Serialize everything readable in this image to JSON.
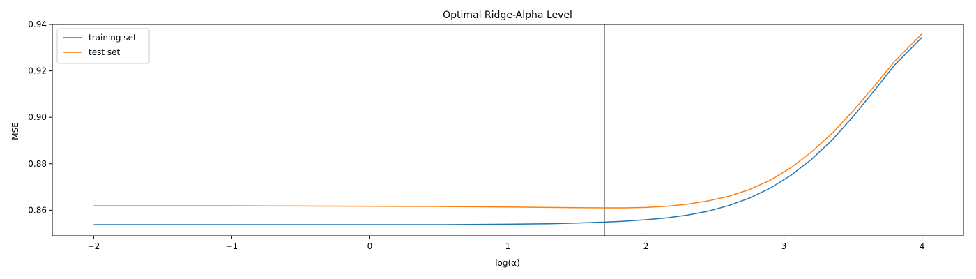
{
  "chart_data": {
    "type": "line",
    "title": "Optimal Ridge-Alpha Level",
    "xlabel": "log(α)",
    "ylabel": "MSE",
    "xlim": [
      -2.3,
      4.3
    ],
    "ylim": [
      0.849,
      0.94
    ],
    "xticks": [
      -2,
      -1,
      0,
      1,
      2,
      3,
      4
    ],
    "xtick_labels": [
      "−2",
      "−1",
      "0",
      "1",
      "2",
      "3",
      "4"
    ],
    "yticks": [
      0.86,
      0.88,
      0.9,
      0.92,
      0.94
    ],
    "ytick_labels": [
      "0.86",
      "0.88",
      "0.90",
      "0.92",
      "0.94"
    ],
    "grid": false,
    "legend_position": "top-left",
    "vline": {
      "x": 1.7,
      "color": "#808080"
    },
    "x": [
      -2.0,
      -1.5,
      -1.0,
      -0.5,
      0.0,
      0.5,
      1.0,
      1.3,
      1.5,
      1.7,
      1.85,
      2.0,
      2.15,
      2.3,
      2.45,
      2.6,
      2.75,
      2.9,
      3.05,
      3.2,
      3.35,
      3.5,
      3.65,
      3.8,
      4.0
    ],
    "series": [
      {
        "name": "training set",
        "color": "#1f77b4",
        "values": [
          0.8538,
          0.8538,
          0.8538,
          0.8538,
          0.8538,
          0.8538,
          0.854,
          0.8542,
          0.8545,
          0.8549,
          0.8553,
          0.8559,
          0.8567,
          0.8579,
          0.8596,
          0.862,
          0.8652,
          0.8695,
          0.875,
          0.8819,
          0.8903,
          0.9003,
          0.9112,
          0.9224,
          0.9345
        ]
      },
      {
        "name": "test set",
        "color": "#ff7f0e",
        "values": [
          0.8619,
          0.8619,
          0.8619,
          0.8618,
          0.8617,
          0.8616,
          0.8614,
          0.8612,
          0.8611,
          0.861,
          0.861,
          0.8612,
          0.8617,
          0.8626,
          0.864,
          0.866,
          0.8689,
          0.8729,
          0.8783,
          0.8851,
          0.8932,
          0.9027,
          0.9131,
          0.924,
          0.936
        ]
      }
    ]
  }
}
